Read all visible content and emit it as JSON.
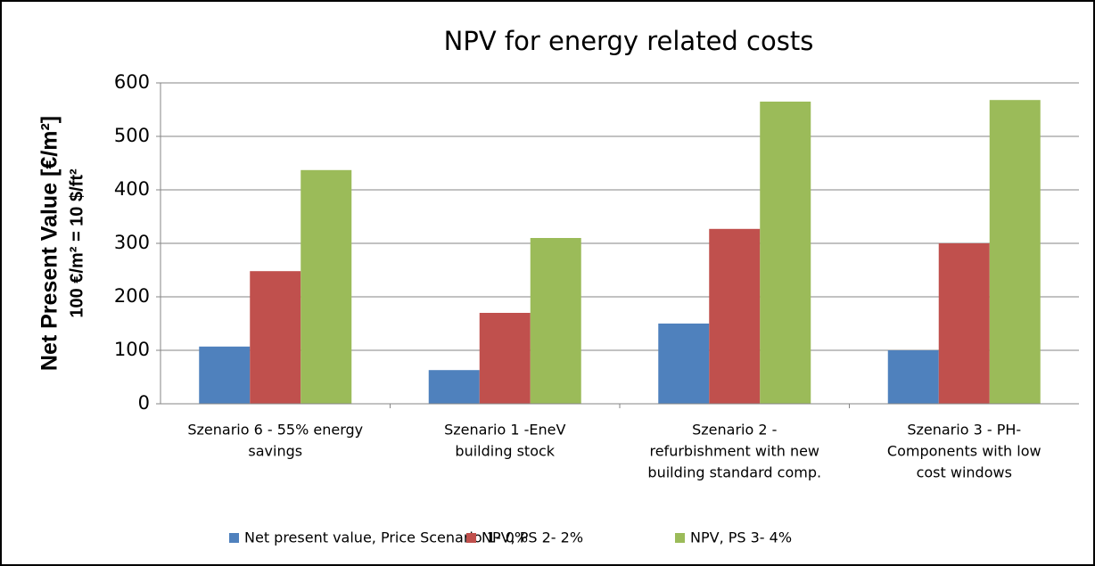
{
  "chart_data": {
    "type": "bar",
    "title": "NPV for energy related costs",
    "y_label": [
      "Net Present Value [€/m²]",
      "100 €/m² = 10 $/ft²"
    ],
    "categories": [
      [
        "Szenario 6 - 55% energy",
        "savings"
      ],
      [
        "Szenario 1 -EneV",
        "building stock"
      ],
      [
        "Szenario 2 -",
        "refurbishment with new",
        "building standard comp."
      ],
      [
        "Szenario 3 - PH-",
        "Components with low",
        "cost windows"
      ]
    ],
    "series": [
      {
        "name": "Net present value, Price Scenario 1- 0%",
        "color": "#4f81bd",
        "values": [
          107,
          63,
          150,
          100
        ]
      },
      {
        "name": "NPV, PS 2- 2%",
        "color": "#c0504d",
        "values": [
          248,
          170,
          327,
          300
        ]
      },
      {
        "name": "NPV, PS 3- 4%",
        "color": "#9bbb59",
        "values": [
          437,
          310,
          565,
          568
        ]
      }
    ],
    "ylim": [
      0,
      600
    ],
    "yticks": [
      0,
      100,
      200,
      300,
      400,
      500,
      600
    ],
    "grid": true,
    "legend": "bottom"
  }
}
